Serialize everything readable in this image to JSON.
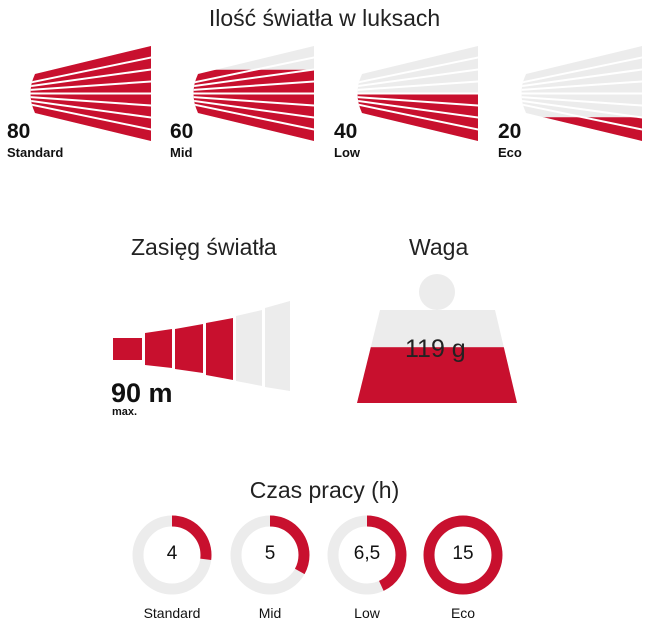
{
  "colors": {
    "accent": "#c8102e",
    "inactive": "#ececec",
    "white": "#ffffff"
  },
  "lux": {
    "title": "Ilość światła w luksach",
    "items": [
      {
        "value": "80",
        "label": "Standard",
        "level": 1.0
      },
      {
        "value": "60",
        "label": "Mid",
        "level": 0.75
      },
      {
        "value": "40",
        "label": "Low",
        "level": 0.5
      },
      {
        "value": "20",
        "label": "Eco",
        "level": 0.25
      }
    ]
  },
  "range": {
    "title": "Zasięg światła",
    "value": "90 m",
    "qualifier": "max.",
    "segments_total": 6,
    "segments_active": 4
  },
  "weight": {
    "title": "Waga",
    "value": "119 g",
    "fill_fraction": 0.6
  },
  "runtime": {
    "title": "Czas pracy (h)",
    "items": [
      {
        "value": "4",
        "label": "Standard",
        "fraction": 0.27
      },
      {
        "value": "5",
        "label": "Mid",
        "fraction": 0.33
      },
      {
        "value": "6,5",
        "label": "Low",
        "fraction": 0.43
      },
      {
        "value": "15",
        "label": "Eco",
        "fraction": 1.0
      }
    ]
  }
}
